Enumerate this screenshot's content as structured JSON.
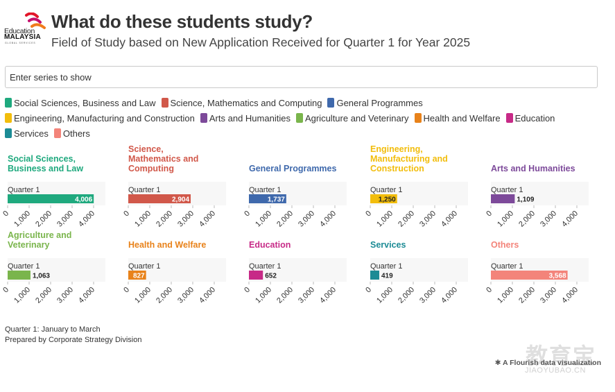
{
  "header": {
    "logo_text_1": "Education",
    "logo_text_2": "MALAYSIA",
    "logo_text_3": "GLOBAL SERVICES",
    "title": "What do these students study?",
    "subtitle": "Field of Study based on New Application Received for Quarter 1 for Year 2025"
  },
  "search": {
    "placeholder": "Enter series to show"
  },
  "legend": [
    {
      "label": "Social Sciences, Business and Law",
      "color": "#1fa97e"
    },
    {
      "label": "Science, Mathematics and Computing",
      "color": "#d1584a"
    },
    {
      "label": "General Programmes",
      "color": "#3f69ac"
    },
    {
      "label": "Engineering, Manufacturing and Construction",
      "color": "#f2bd0c"
    },
    {
      "label": "Arts and Humanities",
      "color": "#7d4a9a"
    },
    {
      "label": "Agriculture and Veterinary",
      "color": "#7ab54c"
    },
    {
      "label": "Health and Welfare",
      "color": "#e8821a"
    },
    {
      "label": "Education",
      "color": "#c72a87"
    },
    {
      "label": "Services",
      "color": "#1c8b95"
    },
    {
      "label": "Others",
      "color": "#f3847a"
    }
  ],
  "chart_data": {
    "type": "bar",
    "orientation": "horizontal",
    "layout": "small-multiples",
    "categories": [
      "Quarter 1"
    ],
    "xlim": [
      0,
      4000
    ],
    "xticks": [
      "0",
      "1,000",
      "2,000",
      "3,000",
      "4,000"
    ],
    "series": [
      {
        "name": "Social Sciences, Business and Law",
        "values": [
          4006
        ],
        "labels": [
          "4,006"
        ],
        "color": "#1fa97e"
      },
      {
        "name": "Science, Mathematics and Computing",
        "values": [
          2904
        ],
        "labels": [
          "2,904"
        ],
        "color": "#d1584a"
      },
      {
        "name": "General Programmes",
        "values": [
          1737
        ],
        "labels": [
          "1,737"
        ],
        "color": "#3f69ac"
      },
      {
        "name": "Engineering, Manufacturing and Construction",
        "values": [
          1250
        ],
        "labels": [
          "1,250"
        ],
        "color": "#f2bd0c"
      },
      {
        "name": "Arts and Humanities",
        "values": [
          1109
        ],
        "labels": [
          "1,109"
        ],
        "color": "#7d4a9a"
      },
      {
        "name": "Agriculture and Veterinary",
        "values": [
          1063
        ],
        "labels": [
          "1,063"
        ],
        "color": "#7ab54c"
      },
      {
        "name": "Health and Welfare",
        "values": [
          827
        ],
        "labels": [
          "827"
        ],
        "color": "#e8821a"
      },
      {
        "name": "Education",
        "values": [
          652
        ],
        "labels": [
          "652"
        ],
        "color": "#c72a87"
      },
      {
        "name": "Services",
        "values": [
          419
        ],
        "labels": [
          "419"
        ],
        "color": "#1c8b95"
      },
      {
        "name": "Others",
        "values": [
          3568
        ],
        "labels": [
          "3,568"
        ],
        "color": "#f3847a"
      }
    ]
  },
  "footer": {
    "note_1": "Quarter 1: January to March",
    "note_2": "Prepared by Corporate Strategy Division",
    "credit": "A Flourish data visualization",
    "watermark": "教育宝",
    "watermark_url": "JIAOYUBAO.CN"
  }
}
